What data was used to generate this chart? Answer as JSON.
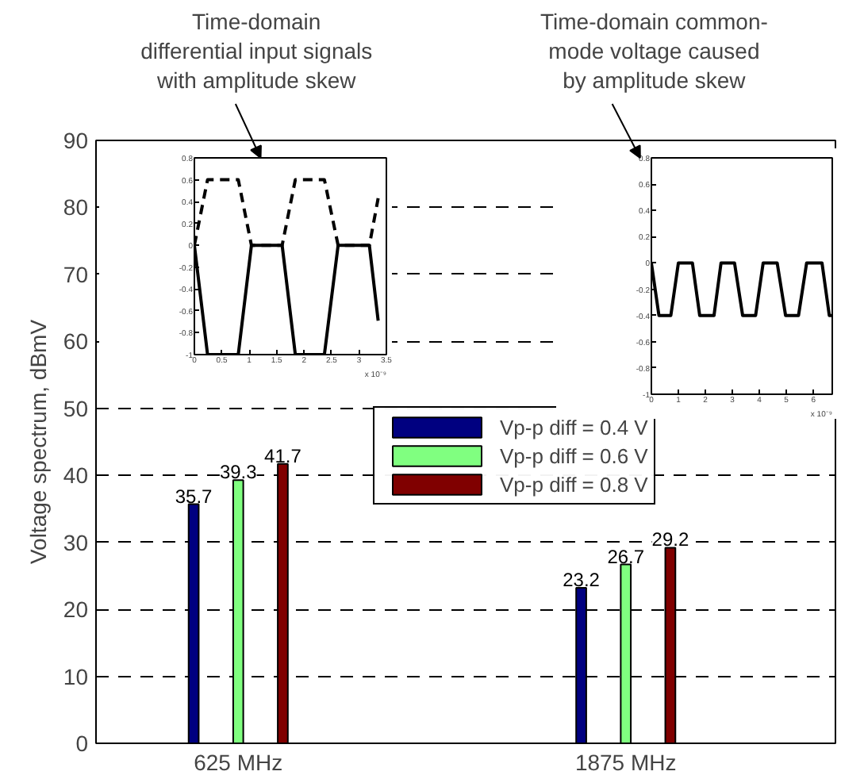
{
  "chart_data": [
    {
      "type": "bar",
      "ylabel": "Voltage spectrum, dBmV",
      "categories": [
        "625 MHz",
        "1875 MHz"
      ],
      "ylim": [
        0,
        90
      ],
      "yticks": [
        0,
        10,
        20,
        30,
        40,
        50,
        60,
        70,
        80,
        90
      ],
      "grid": "y",
      "legend": "center",
      "data_labels": true,
      "series": [
        {
          "name": "Vp-p diff = 0.4 V",
          "color": "#000080",
          "values": [
            35.7,
            23.2
          ]
        },
        {
          "name": "Vp-p diff = 0.6 V",
          "color": "#80ff80",
          "values": [
            39.3,
            26.7
          ]
        },
        {
          "name": "Vp-p diff = 0.8 V",
          "color": "#800000",
          "values": [
            41.7,
            29.2
          ]
        }
      ],
      "annotations": [
        "Time-domain\ndifferential input signals\nwith amplitude skew",
        "Time-domain common-\nmode voltage caused\nby amplitude skew"
      ]
    },
    {
      "type": "line",
      "xlim": [
        0,
        3.5
      ],
      "ylim": [
        -1,
        0.8
      ],
      "xticks": [
        0,
        0.5,
        1,
        1.5,
        2,
        2.5,
        3,
        3.5
      ],
      "yticks": [
        -1,
        -0.8,
        -0.6,
        -0.4,
        -0.2,
        0,
        0.2,
        0.4,
        0.6,
        0.8
      ],
      "annotations": [
        "x 10⁻⁹"
      ],
      "series": [
        {
          "color": "#000000",
          "line_style": "dashed",
          "x": [
            0,
            0.24,
            0.8,
            1.04,
            1.6,
            1.84,
            2.37,
            2.62,
            3.19,
            3.35
          ],
          "values": [
            0,
            0.6,
            0.6,
            0,
            0,
            0.6,
            0.6,
            0,
            0,
            0.43
          ]
        },
        {
          "color": "#000000",
          "line_style": "solid",
          "x": [
            0,
            0.24,
            0.8,
            1.04,
            1.6,
            1.84,
            2.37,
            2.62,
            3.19,
            3.35
          ],
          "values": [
            0,
            -1,
            -1,
            0,
            0,
            -1,
            -1,
            0,
            0,
            -0.69
          ]
        }
      ]
    },
    {
      "type": "line",
      "xlim": [
        0,
        6.7
      ],
      "ylim": [
        -1,
        0.8
      ],
      "xticks": [
        0,
        1,
        2,
        3,
        4,
        5,
        6
      ],
      "yticks": [
        -1,
        -0.8,
        -0.6,
        -0.4,
        -0.2,
        0,
        0.2,
        0.4,
        0.6,
        0.8
      ],
      "annotations": [
        "x 10⁻⁹"
      ],
      "series": [
        {
          "color": "#000000",
          "line_style": "solid",
          "x": [
            0,
            0.28,
            0.72,
            1.0,
            1.52,
            1.79,
            2.32,
            2.58,
            3.08,
            3.38,
            3.86,
            4.14,
            4.66,
            4.97,
            5.45,
            5.75,
            6.32,
            6.59,
            6.69
          ],
          "values": [
            0,
            -0.4,
            -0.4,
            0,
            0,
            -0.4,
            -0.4,
            0,
            0,
            -0.4,
            -0.4,
            0,
            0,
            -0.4,
            -0.4,
            0,
            0,
            -0.4,
            -0.4
          ]
        }
      ]
    }
  ]
}
